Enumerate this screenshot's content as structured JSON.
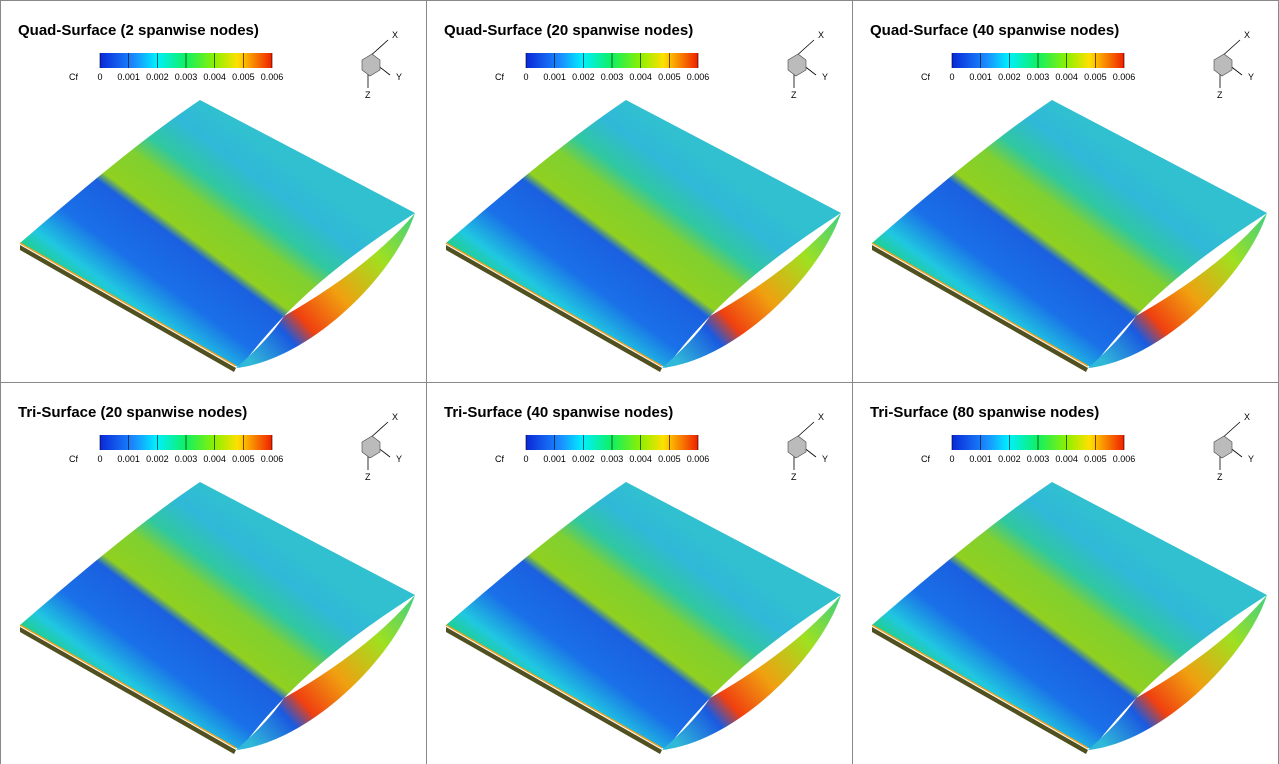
{
  "panels": [
    {
      "title": "Quad-Surface (2 spanwise nodes)",
      "colorbar": {
        "label": "Cf",
        "ticks": [
          "0",
          "0.001",
          "0.002",
          "0.003",
          "0.004",
          "0.005",
          "0.006"
        ]
      },
      "axes": [
        "X",
        "Y",
        "Z"
      ]
    },
    {
      "title": "Quad-Surface (20 spanwise nodes)",
      "colorbar": {
        "label": "Cf",
        "ticks": [
          "0",
          "0.001",
          "0.002",
          "0.003",
          "0.004",
          "0.005",
          "0.006"
        ]
      },
      "axes": [
        "X",
        "Y",
        "Z"
      ]
    },
    {
      "title": "Quad-Surface (40 spanwise nodes)",
      "colorbar": {
        "label": "Cf",
        "ticks": [
          "0",
          "0.001",
          "0.002",
          "0.003",
          "0.004",
          "0.005",
          "0.006"
        ]
      },
      "axes": [
        "X",
        "Y",
        "Z"
      ]
    },
    {
      "title": "Tri-Surface (20 spanwise nodes)",
      "colorbar": {
        "label": "Cf",
        "ticks": [
          "0",
          "0.001",
          "0.002",
          "0.003",
          "0.004",
          "0.005",
          "0.006"
        ]
      },
      "axes": [
        "X",
        "Y",
        "Z"
      ]
    },
    {
      "title": "Tri-Surface (40 spanwise nodes)",
      "colorbar": {
        "label": "Cf",
        "ticks": [
          "0",
          "0.001",
          "0.002",
          "0.003",
          "0.004",
          "0.005",
          "0.006"
        ]
      },
      "axes": [
        "X",
        "Y",
        "Z"
      ]
    },
    {
      "title": "Tri-Surface (80 spanwise nodes)",
      "colorbar": {
        "label": "Cf",
        "ticks": [
          "0",
          "0.001",
          "0.002",
          "0.003",
          "0.004",
          "0.005",
          "0.006"
        ]
      },
      "axes": [
        "X",
        "Y",
        "Z"
      ]
    }
  ]
}
